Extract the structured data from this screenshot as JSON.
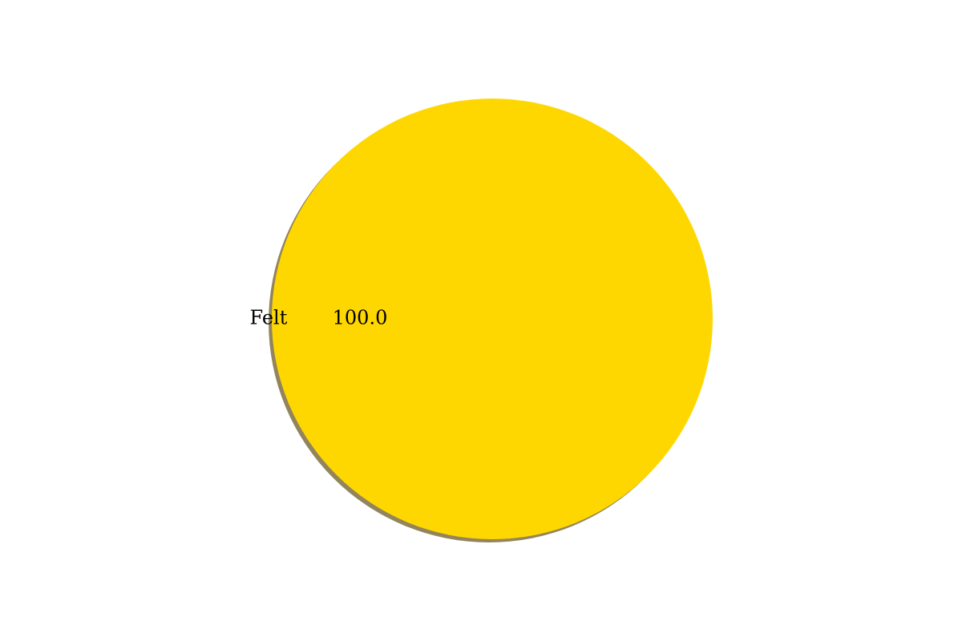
{
  "chart_data": {
    "type": "pie",
    "categories": [
      "Felt"
    ],
    "values": [
      100.0
    ],
    "autopct_labels": [
      "100.0"
    ],
    "colors": [
      "#FFD700"
    ],
    "shadow": true,
    "shadow_color": "#7F6E3F"
  }
}
